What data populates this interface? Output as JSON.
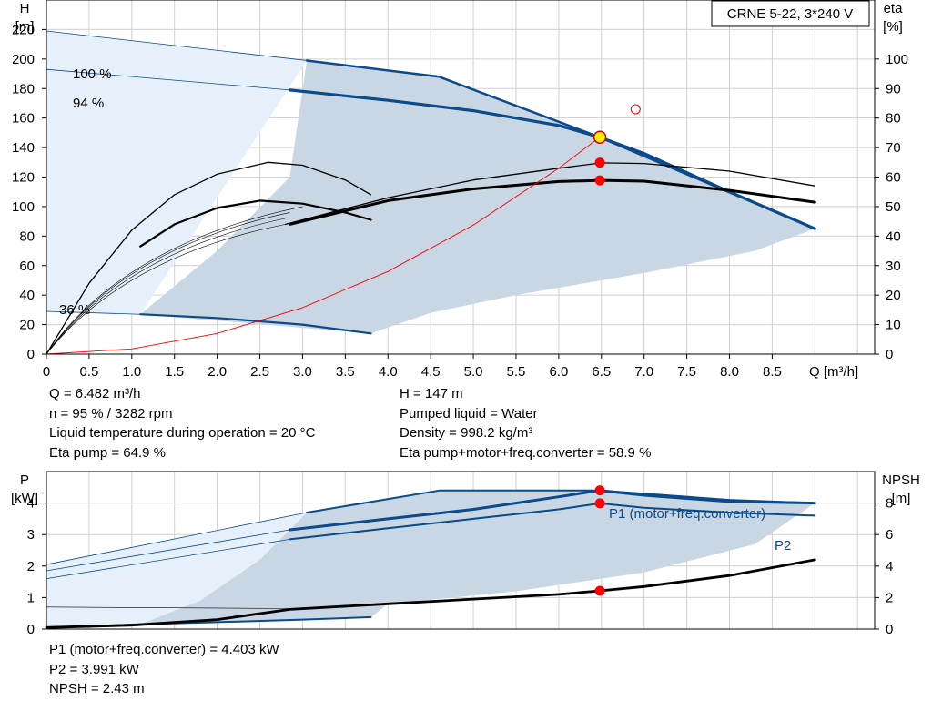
{
  "chart_data": [
    {
      "type": "line",
      "title": "CRNE 5-22, 3*240 V",
      "xlabel": "Q [m³/h]",
      "ylabel_left": "H",
      "ylabel_left_unit": "[m]",
      "ylabel_right": "eta",
      "ylabel_right_unit": "[%]",
      "xlim": [
        0,
        9.7
      ],
      "ylim_left": [
        0,
        240
      ],
      "ylim_right": [
        0,
        120
      ],
      "x_ticks": [
        "0",
        "0.5",
        "1.0",
        "1.5",
        "2.0",
        "2.5",
        "3.0",
        "3.5",
        "4.0",
        "4.5",
        "5.0",
        "5.5",
        "6.0",
        "6.5",
        "7.0",
        "7.5",
        "8.0",
        "8.5"
      ],
      "y_left_ticks": [
        "0",
        "20",
        "40",
        "60",
        "80",
        "100",
        "120",
        "140",
        "160",
        "180",
        "200",
        "220"
      ],
      "y_right_ticks": [
        "0",
        "10",
        "20",
        "30",
        "40",
        "50",
        "60",
        "70",
        "80",
        "90",
        "100"
      ],
      "grid": true,
      "speed_labels": [
        "100 %",
        "94 %",
        "36 %"
      ],
      "series": [
        {
          "role": "head_max",
          "color": "#0b4a8b",
          "x": [
            3.05,
            4.6,
            6.48,
            9.0
          ],
          "y": [
            199,
            188,
            147,
            85
          ]
        },
        {
          "role": "head_operating",
          "color": "#0b4a8b",
          "x": [
            2.85,
            4.0,
            5.0,
            6.0,
            6.48,
            7.0,
            8.0,
            9.0
          ],
          "y": [
            179,
            172,
            165,
            155,
            147,
            136,
            110,
            85
          ]
        },
        {
          "role": "head_min",
          "color": "#0b4a8b",
          "x": [
            1.1,
            2.0,
            3.0,
            3.8
          ],
          "y": [
            27,
            24.5,
            20,
            14
          ]
        },
        {
          "role": "eta_thin_1",
          "color": "#000000",
          "x": [
            2.8,
            4.0,
            5.0,
            6.0,
            6.5,
            7.0,
            8.0,
            9.0
          ],
          "y": [
            44,
            53,
            59,
            63,
            64.8,
            64.6,
            62,
            57
          ]
        },
        {
          "role": "eta_thin_2",
          "color": "#000000",
          "x": [
            0.0,
            0.5,
            1.0,
            1.5,
            2.0,
            2.6,
            3.0,
            3.5,
            3.8
          ],
          "y": [
            0,
            24,
            42,
            54,
            61,
            65,
            64,
            59,
            54
          ]
        },
        {
          "role": "eta_total",
          "color": "#000000",
          "x": [
            2.85,
            4.0,
            5.0,
            6.0,
            6.5,
            7.0,
            8.0,
            9.0
          ],
          "y": [
            44,
            52,
            56,
            58.5,
            58.9,
            58.6,
            55.5,
            51.5
          ]
        },
        {
          "role": "eta_total_small",
          "color": "#000000",
          "x": [
            1.1,
            1.5,
            2.0,
            2.5,
            3.0,
            3.5,
            3.8
          ],
          "y": [
            36.5,
            44,
            49.5,
            52,
            51,
            48,
            45.5
          ]
        },
        {
          "role": "system_curve",
          "color": "#ff0000",
          "x": [
            0,
            1,
            2,
            3,
            4,
            5,
            6,
            6.48
          ],
          "y": [
            0,
            3.5,
            14,
            31.5,
            56,
            87.5,
            126,
            147
          ]
        }
      ],
      "operating_point": {
        "q": 6.482,
        "h": 147,
        "eta_pump": 64.9,
        "eta_total": 58.9
      },
      "extra_marker": {
        "q": 6.9,
        "h": 166
      }
    },
    {
      "type": "line",
      "ylabel_left": "P",
      "ylabel_left_unit": "[kW]",
      "ylabel_right": "NPSH",
      "ylabel_right_unit": "[m]",
      "ylim_left": [
        0,
        5
      ],
      "ylim_right": [
        0,
        10
      ],
      "y_left_ticks": [
        "0",
        "1",
        "2",
        "3",
        "4"
      ],
      "y_right_ticks": [
        "0",
        "2",
        "4",
        "6",
        "8"
      ],
      "series": [
        {
          "name": "P1 (motor+freq.converter)",
          "color": "#0b4a8b",
          "x": [
            2.85,
            4.0,
            5.0,
            6.0,
            6.48,
            7.0,
            8.0,
            9.0
          ],
          "y": [
            3.15,
            3.5,
            3.8,
            4.2,
            4.403,
            4.25,
            4.05,
            4.0
          ]
        },
        {
          "name": "P2",
          "color": "#0b4a8b",
          "x": [
            2.85,
            4.0,
            5.0,
            6.0,
            6.48,
            7.0,
            8.0,
            9.0
          ],
          "y": [
            2.85,
            3.2,
            3.5,
            3.8,
            3.991,
            3.85,
            3.7,
            3.6
          ]
        },
        {
          "role": "P_max",
          "color": "#0b4a8b",
          "x": [
            3.05,
            4.6,
            6.48,
            7.0,
            8.0,
            9.0
          ],
          "y": [
            3.7,
            4.4,
            4.4,
            4.3,
            4.1,
            4.0
          ]
        },
        {
          "role": "P_small",
          "color": "#0b4a8b",
          "x": [
            0.0,
            1.1,
            2.0,
            3.0,
            3.8
          ],
          "y": [
            0.05,
            0.15,
            0.22,
            0.3,
            0.38
          ]
        },
        {
          "role": "NPSH",
          "color": "#000000",
          "x": [
            0.0,
            1.0,
            2.0,
            2.85,
            4.0,
            5.0,
            6.0,
            6.48,
            7.0,
            8.0,
            9.0
          ],
          "y": [
            0.1,
            0.25,
            0.6,
            1.25,
            1.6,
            1.9,
            2.2,
            2.43,
            2.7,
            3.4,
            4.4
          ]
        }
      ],
      "operating_points": {
        "P1": 4.403,
        "P2": 3.991,
        "NPSH": 2.43
      }
    }
  ],
  "info_upper": {
    "left": [
      "Q = 6.482 m³/h",
      "n = 95 % / 3282 rpm",
      "Liquid temperature during operation = 20 °C",
      "Eta pump = 64.9 %"
    ],
    "right": [
      "H = 147 m",
      "Pumped liquid = Water",
      "Density = 998.2 kg/m³",
      "Eta pump+motor+freq.converter = 58.9 %"
    ]
  },
  "info_lower": [
    "P1 (motor+freq.converter) = 4.403 kW",
    "P2 = 3.991 kW",
    "NPSH = 2.43 m"
  ],
  "colors": {
    "curve_blue": "#0b4a8b",
    "region_light": "#e6f0fa",
    "region_dark": "#c9d6e4",
    "grid": "#d0d0d0",
    "marker_red": "#ff0000",
    "marker_yellow": "#ffee00"
  }
}
